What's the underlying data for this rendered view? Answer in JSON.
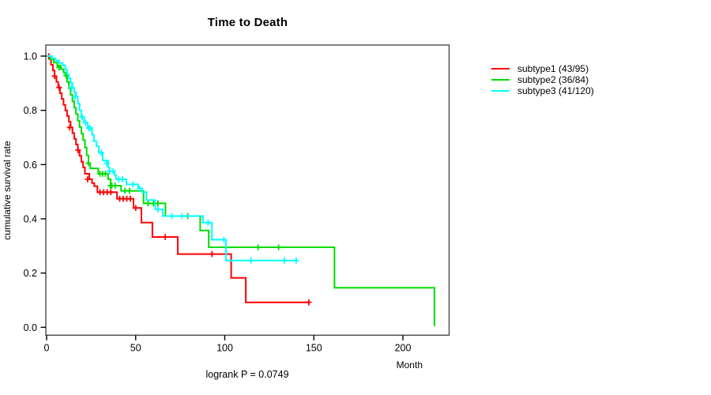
{
  "chart_data": {
    "type": "line",
    "variant": "kaplan-meier-step",
    "title": "Time to Death",
    "xlabel": "Month",
    "ylabel": "cumulative survival rate",
    "annotation": "logrank P = 0.0749",
    "x_ticks": [
      0,
      50,
      100,
      150,
      200
    ],
    "y_ticks": [
      1.0,
      0.8,
      0.6,
      0.4,
      0.2,
      0.0
    ],
    "xlim": [
      0,
      226
    ],
    "ylim": [
      0,
      1.04
    ],
    "grid": false,
    "legend_position": "right-outside",
    "box_color": "#4a4a4a",
    "tick_color": "#000000",
    "text_color": "#000000",
    "series": [
      {
        "name": "subtype1",
        "label": "subtype1 (43/95)",
        "color": "#ff0000",
        "events": 43,
        "total": 95,
        "steps": [
          [
            0,
            1.0
          ],
          [
            1.5,
            0.989
          ],
          [
            2.5,
            0.968
          ],
          [
            3.5,
            0.947
          ],
          [
            4.5,
            0.926
          ],
          [
            5.5,
            0.905
          ],
          [
            6.5,
            0.884
          ],
          [
            7.5,
            0.863
          ],
          [
            8.5,
            0.842
          ],
          [
            9.5,
            0.82
          ],
          [
            10.5,
            0.8
          ],
          [
            11.5,
            0.779
          ],
          [
            12.5,
            0.758
          ],
          [
            13.5,
            0.737
          ],
          [
            14.5,
            0.716
          ],
          [
            15.5,
            0.695
          ],
          [
            16.5,
            0.674
          ],
          [
            17.5,
            0.653
          ],
          [
            18.5,
            0.632
          ],
          [
            19.5,
            0.61
          ],
          [
            20.5,
            0.59
          ],
          [
            21.5,
            0.566
          ],
          [
            24,
            0.546
          ],
          [
            25.5,
            0.532
          ],
          [
            26.8,
            0.52
          ],
          [
            28.5,
            0.498
          ],
          [
            39.5,
            0.474
          ],
          [
            48.8,
            0.44
          ],
          [
            53.2,
            0.386
          ],
          [
            59.4,
            0.333
          ],
          [
            73.6,
            0.27
          ],
          [
            103.6,
            0.182
          ],
          [
            111.8,
            0.092
          ]
        ],
        "end_time": 147.2,
        "censors": [
          [
            1.2,
            1.0
          ],
          [
            4.5,
            0.926
          ],
          [
            7,
            0.884
          ],
          [
            13,
            0.737
          ],
          [
            17.7,
            0.653
          ],
          [
            23,
            0.546
          ],
          [
            30,
            0.498
          ],
          [
            32,
            0.498
          ],
          [
            34,
            0.498
          ],
          [
            36,
            0.498
          ],
          [
            41,
            0.474
          ],
          [
            43,
            0.474
          ],
          [
            45,
            0.474
          ],
          [
            47,
            0.474
          ],
          [
            50,
            0.44
          ],
          [
            66.6,
            0.333
          ],
          [
            92.8,
            0.27
          ],
          [
            147.2,
            0.092
          ]
        ]
      },
      {
        "name": "subtype2",
        "label": "subtype2 (36/84)",
        "color": "#00dd00",
        "events": 36,
        "total": 84,
        "steps": [
          [
            0,
            1.0
          ],
          [
            2,
            0.988
          ],
          [
            4,
            0.976
          ],
          [
            6,
            0.964
          ],
          [
            8,
            0.952
          ],
          [
            9.5,
            0.94
          ],
          [
            10.5,
            0.928
          ],
          [
            11.5,
            0.905
          ],
          [
            12.5,
            0.881
          ],
          [
            13.5,
            0.857
          ],
          [
            14.5,
            0.833
          ],
          [
            15.5,
            0.81
          ],
          [
            16.5,
            0.786
          ],
          [
            17.5,
            0.762
          ],
          [
            18.5,
            0.738
          ],
          [
            19.5,
            0.714
          ],
          [
            20.5,
            0.69
          ],
          [
            21.5,
            0.663
          ],
          [
            22.5,
            0.634
          ],
          [
            23.5,
            0.605
          ],
          [
            24.5,
            0.586
          ],
          [
            29,
            0.566
          ],
          [
            34.5,
            0.546
          ],
          [
            36,
            0.522
          ],
          [
            41.8,
            0.503
          ],
          [
            54.4,
            0.457
          ],
          [
            66.7,
            0.41
          ],
          [
            86.2,
            0.357
          ],
          [
            91,
            0.295
          ],
          [
            161.6,
            0.146
          ],
          [
            217.7,
            0.004
          ]
        ],
        "censors": [
          [
            7,
            0.958
          ],
          [
            11,
            0.928
          ],
          [
            23.4,
            0.605
          ],
          [
            30,
            0.566
          ],
          [
            31.5,
            0.566
          ],
          [
            33,
            0.566
          ],
          [
            35.8,
            0.522
          ],
          [
            36.6,
            0.522
          ],
          [
            38.5,
            0.522
          ],
          [
            44,
            0.503
          ],
          [
            46.5,
            0.503
          ],
          [
            57,
            0.457
          ],
          [
            60,
            0.457
          ],
          [
            62.5,
            0.457
          ],
          [
            79.2,
            0.41
          ],
          [
            118.7,
            0.295
          ],
          [
            130.2,
            0.295
          ]
        ]
      },
      {
        "name": "subtype3",
        "label": "subtype3 (41/120)",
        "color": "#00ffff",
        "events": 41,
        "total": 120,
        "steps": [
          [
            0,
            1.0
          ],
          [
            3,
            0.992
          ],
          [
            5,
            0.983
          ],
          [
            7,
            0.975
          ],
          [
            9,
            0.966
          ],
          [
            10.5,
            0.95
          ],
          [
            11.5,
            0.933
          ],
          [
            12.5,
            0.917
          ],
          [
            13.5,
            0.9
          ],
          [
            14.5,
            0.883
          ],
          [
            15.5,
            0.866
          ],
          [
            16.5,
            0.85
          ],
          [
            17.5,
            0.825
          ],
          [
            18.5,
            0.8
          ],
          [
            19.5,
            0.775
          ],
          [
            21,
            0.755
          ],
          [
            23,
            0.735
          ],
          [
            25.5,
            0.71
          ],
          [
            26.5,
            0.686
          ],
          [
            28,
            0.668
          ],
          [
            29.3,
            0.644
          ],
          [
            31.5,
            0.615
          ],
          [
            34.5,
            0.59
          ],
          [
            35.2,
            0.576
          ],
          [
            38.1,
            0.561
          ],
          [
            39,
            0.546
          ],
          [
            44.8,
            0.527
          ],
          [
            51.4,
            0.512
          ],
          [
            53.7,
            0.498
          ],
          [
            56,
            0.469
          ],
          [
            61,
            0.435
          ],
          [
            65.2,
            0.41
          ],
          [
            87.8,
            0.386
          ],
          [
            92.8,
            0.323
          ],
          [
            100.7,
            0.246
          ]
        ],
        "end_time": 140.1,
        "censors": [
          [
            14,
            0.883
          ],
          [
            16,
            0.85
          ],
          [
            20,
            0.775
          ],
          [
            21.8,
            0.755
          ],
          [
            23.6,
            0.735
          ],
          [
            24.5,
            0.735
          ],
          [
            30.7,
            0.644
          ],
          [
            33.7,
            0.605
          ],
          [
            35.4,
            0.576
          ],
          [
            37.4,
            0.576
          ],
          [
            40.4,
            0.546
          ],
          [
            42.6,
            0.546
          ],
          [
            48.5,
            0.527
          ],
          [
            52.2,
            0.512
          ],
          [
            62.5,
            0.435
          ],
          [
            70.3,
            0.41
          ],
          [
            76,
            0.41
          ],
          [
            90.6,
            0.386
          ],
          [
            99.5,
            0.323
          ],
          [
            114.7,
            0.246
          ],
          [
            133.5,
            0.246
          ],
          [
            140.1,
            0.246
          ]
        ]
      }
    ]
  }
}
